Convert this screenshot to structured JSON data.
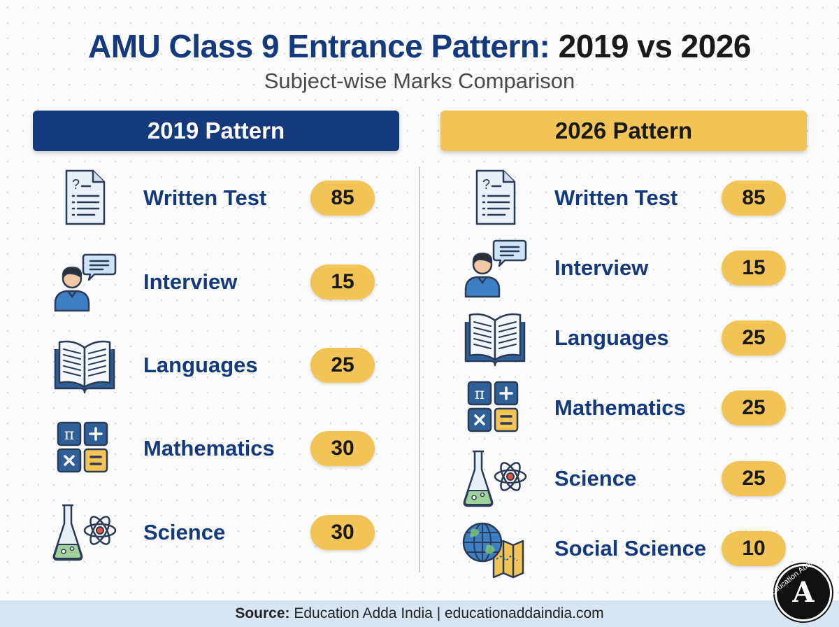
{
  "title": {
    "part1": "AMU Class 9 Entrance Pattern: ",
    "part2": "2019 vs 2026"
  },
  "subtitle": "Subject-wise Marks Comparison",
  "colors": {
    "navy": "#14397d",
    "gold": "#f2c457",
    "footer_bg": "#d7e5f2"
  },
  "pattern_2019": {
    "header": "2019 Pattern",
    "rows": [
      {
        "icon": "document-question-icon",
        "label": "Written Test",
        "marks": "85"
      },
      {
        "icon": "person-speech-bubble-icon",
        "label": "Interview",
        "marks": "15"
      },
      {
        "icon": "open-book-icon",
        "label": "Languages",
        "marks": "25"
      },
      {
        "icon": "math-symbols-icon",
        "label": "Mathematics",
        "marks": "30"
      },
      {
        "icon": "flask-atom-icon",
        "label": "Science",
        "marks": "30"
      }
    ]
  },
  "pattern_2026": {
    "header": "2026 Pattern",
    "rows": [
      {
        "icon": "document-question-icon",
        "label": "Written Test",
        "marks": "85"
      },
      {
        "icon": "person-speech-bubble-icon",
        "label": "Interview",
        "marks": "15"
      },
      {
        "icon": "open-book-icon",
        "label": "Languages",
        "marks": "25"
      },
      {
        "icon": "math-symbols-icon",
        "label": "Mathematics",
        "marks": "25"
      },
      {
        "icon": "flask-atom-icon",
        "label": "Science",
        "marks": "25"
      },
      {
        "icon": "globe-map-icon",
        "label": "Social Science",
        "marks": "10"
      }
    ]
  },
  "footer": {
    "source_label": "Source:",
    "source_text": " Education Adda India | educationaddaindia.com"
  },
  "badge": {
    "ring_text": "Education Adda",
    "monogram": "A"
  }
}
